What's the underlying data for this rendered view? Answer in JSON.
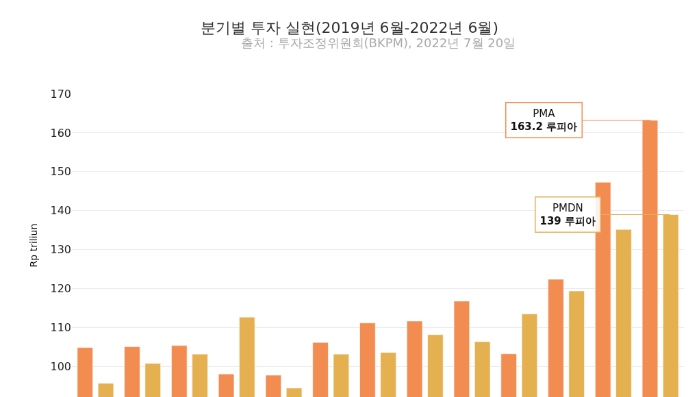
{
  "chart_data": {
    "type": "bar",
    "title": "분기별 투자 실현(2019년 6월-2022년 6월)",
    "subtitle": "출처 : 투자조정위원회(BKPM), 2022년 7월 20일",
    "ylabel": "Rp triliun",
    "categories": [
      null,
      null,
      null,
      null,
      null,
      null,
      null,
      null,
      null,
      null,
      null,
      null,
      null
    ],
    "series": [
      {
        "name": "PMA",
        "color": "#f28c50",
        "values": [
          104.9,
          105.1,
          105.4,
          98.1,
          97.8,
          106.2,
          111.2,
          111.7,
          116.8,
          103.3,
          122.4,
          147.3,
          163.2
        ]
      },
      {
        "name": "PMDN",
        "color": "#e5b050",
        "values": [
          95.7,
          100.8,
          103.2,
          112.7,
          94.5,
          103.2,
          103.6,
          108.2,
          106.4,
          113.5,
          119.4,
          135.2,
          139
        ]
      }
    ],
    "annotations": [
      "163.2 루피아",
      "139 루피아"
    ],
    "ylim": [
      92.2,
      170
    ],
    "yticks": [
      100,
      110,
      120,
      130,
      140,
      150,
      160,
      170
    ],
    "grid": "y"
  }
}
